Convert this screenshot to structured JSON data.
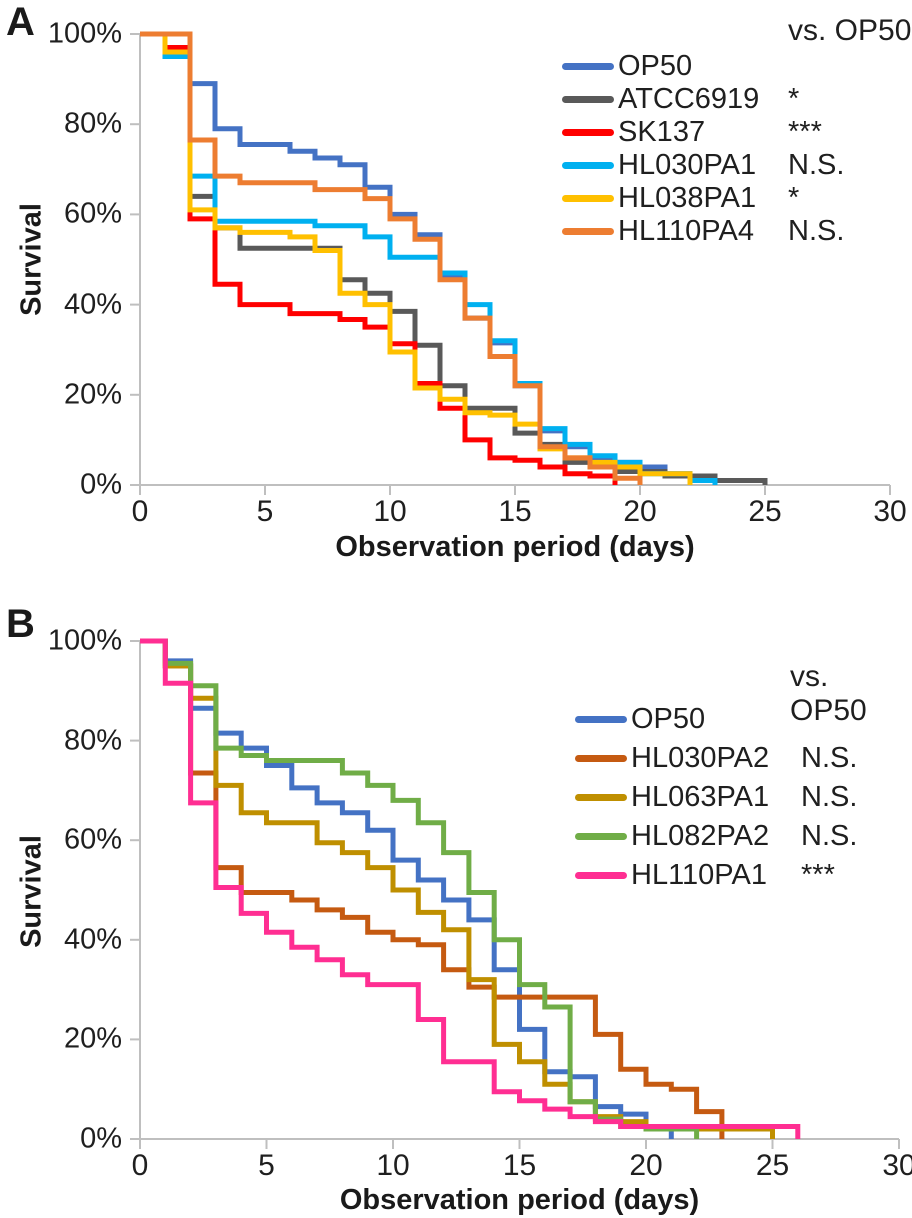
{
  "panel_labels": [
    "A",
    "B"
  ],
  "chart_data": [
    {
      "type": "line",
      "subtype": "kaplan-meier-step",
      "panel": "A",
      "xlabel": "Observation period (days)",
      "ylabel": "Survival",
      "legend_note": "vs. OP50",
      "legend_position": "top-right",
      "grid": false,
      "xlim": [
        0,
        30
      ],
      "ylim_pct": [
        0,
        100
      ],
      "x_ticks": [
        "0",
        "5",
        "10",
        "15",
        "20",
        "25",
        "30"
      ],
      "y_ticks": [
        "100%",
        "80%",
        "60%",
        "40%",
        "20%",
        "0%"
      ],
      "axis_color": "#BFBFBF",
      "series": [
        {
          "name": "OP50",
          "color": "#4472C4",
          "vs_op50": "",
          "points": [
            [
              0,
              100
            ],
            [
              2,
              89
            ],
            [
              3,
              79
            ],
            [
              4,
              75.5
            ],
            [
              6,
              74
            ],
            [
              7,
              72.5
            ],
            [
              8,
              71
            ],
            [
              9,
              66
            ],
            [
              10,
              60
            ],
            [
              11,
              55.5
            ],
            [
              12,
              46.5
            ],
            [
              13,
              37
            ],
            [
              14,
              31.5
            ],
            [
              15,
              22
            ],
            [
              16,
              12
            ],
            [
              17,
              8.5
            ],
            [
              18,
              6
            ],
            [
              19,
              5
            ],
            [
              20,
              4
            ],
            [
              21,
              2.5
            ],
            [
              22,
              1
            ],
            [
              23,
              0
            ]
          ]
        },
        {
          "name": "ATCC6919",
          "color": "#595959",
          "vs_op50": "*",
          "points": [
            [
              0,
              100
            ],
            [
              1,
              97
            ],
            [
              2,
              64
            ],
            [
              3,
              57
            ],
            [
              4,
              52.5
            ],
            [
              8,
              45.5
            ],
            [
              9,
              42.5
            ],
            [
              10,
              38.5
            ],
            [
              11,
              31
            ],
            [
              12,
              22
            ],
            [
              13,
              17
            ],
            [
              15,
              11.5
            ],
            [
              16,
              9
            ],
            [
              17,
              5
            ],
            [
              19,
              3
            ],
            [
              21,
              2
            ],
            [
              23,
              1
            ],
            [
              25,
              0
            ]
          ]
        },
        {
          "name": "SK137",
          "color": "#FF0000",
          "vs_op50": "***",
          "points": [
            [
              0,
              100
            ],
            [
              1,
              97
            ],
            [
              2,
              59
            ],
            [
              3,
              44.5
            ],
            [
              4,
              40
            ],
            [
              6,
              38
            ],
            [
              8,
              36.7
            ],
            [
              9,
              35
            ],
            [
              10,
              31.3
            ],
            [
              11,
              22.5
            ],
            [
              12,
              17
            ],
            [
              13,
              10
            ],
            [
              14,
              6
            ],
            [
              15,
              5.5
            ],
            [
              16,
              4
            ],
            [
              17,
              2.5
            ],
            [
              18,
              2
            ],
            [
              19,
              0
            ]
          ]
        },
        {
          "name": "HL030PA1",
          "color": "#00B0F0",
          "vs_op50": "N.S.",
          "points": [
            [
              0,
              100
            ],
            [
              1,
              95
            ],
            [
              2,
              68.5
            ],
            [
              3,
              58.5
            ],
            [
              7,
              57.5
            ],
            [
              9,
              55
            ],
            [
              10,
              50.5
            ],
            [
              12,
              47
            ],
            [
              13,
              40
            ],
            [
              14,
              32
            ],
            [
              15,
              22.5
            ],
            [
              16,
              12.5
            ],
            [
              17,
              9
            ],
            [
              18,
              6.5
            ],
            [
              19,
              5
            ],
            [
              20,
              2.5
            ],
            [
              22,
              1
            ],
            [
              23,
              0
            ]
          ]
        },
        {
          "name": "HL038PA1",
          "color": "#FFC000",
          "vs_op50": "*",
          "points": [
            [
              0,
              100
            ],
            [
              1,
              96
            ],
            [
              2,
              61
            ],
            [
              3,
              57
            ],
            [
              4,
              56
            ],
            [
              6,
              55
            ],
            [
              7,
              52
            ],
            [
              8,
              42.5
            ],
            [
              9,
              40
            ],
            [
              10,
              29.5
            ],
            [
              11,
              21.5
            ],
            [
              12,
              19
            ],
            [
              13,
              16
            ],
            [
              14,
              15.5
            ],
            [
              15,
              13.5
            ],
            [
              16,
              8
            ],
            [
              17,
              6
            ],
            [
              18,
              5
            ],
            [
              19,
              4
            ],
            [
              20,
              2.5
            ],
            [
              22,
              0
            ]
          ]
        },
        {
          "name": "HL110PA4",
          "color": "#ED7D31",
          "vs_op50": "N.S.",
          "points": [
            [
              0,
              100
            ],
            [
              2,
              76.5
            ],
            [
              3,
              68.5
            ],
            [
              4,
              67
            ],
            [
              7,
              65.5
            ],
            [
              9,
              63.5
            ],
            [
              10,
              59
            ],
            [
              11,
              54.5
            ],
            [
              12,
              45.5
            ],
            [
              13,
              37
            ],
            [
              14,
              28.5
            ],
            [
              15,
              22
            ],
            [
              16,
              8.5
            ],
            [
              17,
              6
            ],
            [
              18,
              4
            ],
            [
              19,
              1.5
            ],
            [
              20,
              0
            ]
          ]
        }
      ]
    },
    {
      "type": "line",
      "subtype": "kaplan-meier-step",
      "panel": "B",
      "xlabel": "Observation period (days)",
      "ylabel": "Survival",
      "legend_note": "vs. OP50",
      "legend_position": "top-right",
      "grid": false,
      "xlim": [
        0,
        30
      ],
      "ylim_pct": [
        0,
        100
      ],
      "x_ticks": [
        "0",
        "5",
        "10",
        "15",
        "20",
        "25",
        "30"
      ],
      "y_ticks": [
        "100%",
        "80%",
        "60%",
        "40%",
        "20%",
        "0%"
      ],
      "axis_color": "#BFBFBF",
      "series": [
        {
          "name": "OP50",
          "color": "#4472C4",
          "vs_op50": "",
          "points": [
            [
              0,
              100
            ],
            [
              1,
              96
            ],
            [
              2,
              86.5
            ],
            [
              3,
              81.5
            ],
            [
              4,
              78.5
            ],
            [
              5,
              75
            ],
            [
              6,
              70.5
            ],
            [
              7,
              67.5
            ],
            [
              8,
              65.5
            ],
            [
              9,
              62
            ],
            [
              10,
              56
            ],
            [
              11,
              52
            ],
            [
              12,
              48
            ],
            [
              13,
              44
            ],
            [
              14,
              34
            ],
            [
              15,
              22
            ],
            [
              16,
              13.5
            ],
            [
              17,
              12.5
            ],
            [
              18,
              6.5
            ],
            [
              19,
              5
            ],
            [
              20,
              2.5
            ],
            [
              21,
              0
            ]
          ]
        },
        {
          "name": "HL030PA2",
          "color": "#C55A11",
          "vs_op50": "N.S.",
          "points": [
            [
              0,
              100
            ],
            [
              1,
              95
            ],
            [
              2,
              73.5
            ],
            [
              3,
              54.5
            ],
            [
              4,
              49.5
            ],
            [
              6,
              48
            ],
            [
              7,
              46
            ],
            [
              8,
              44.5
            ],
            [
              9,
              41.5
            ],
            [
              10,
              40
            ],
            [
              11,
              39
            ],
            [
              12,
              34
            ],
            [
              13,
              30.5
            ],
            [
              14,
              28.5
            ],
            [
              18,
              21
            ],
            [
              19,
              14
            ],
            [
              20,
              11
            ],
            [
              21,
              10
            ],
            [
              22,
              5.5
            ],
            [
              23,
              0
            ]
          ]
        },
        {
          "name": "HL063PA1",
          "color": "#BF8F00",
          "vs_op50": "N.S.",
          "points": [
            [
              0,
              100
            ],
            [
              1,
              95
            ],
            [
              2,
              88.5
            ],
            [
              3,
              71
            ],
            [
              4,
              65.5
            ],
            [
              5,
              63.5
            ],
            [
              7,
              59.5
            ],
            [
              8,
              57.5
            ],
            [
              9,
              54.5
            ],
            [
              10,
              50
            ],
            [
              11,
              45.5
            ],
            [
              12,
              42
            ],
            [
              13,
              32
            ],
            [
              14,
              19
            ],
            [
              15,
              15.5
            ],
            [
              16,
              11
            ],
            [
              17,
              7.5
            ],
            [
              18,
              4.5
            ],
            [
              19,
              3.5
            ],
            [
              20,
              2
            ],
            [
              25,
              0
            ]
          ]
        },
        {
          "name": "HL082PA2",
          "color": "#70AD47",
          "vs_op50": "N.S.",
          "points": [
            [
              0,
              100
            ],
            [
              1,
              95.5
            ],
            [
              2,
              91
            ],
            [
              3,
              78.5
            ],
            [
              4,
              77
            ],
            [
              5,
              76
            ],
            [
              8,
              73.5
            ],
            [
              9,
              71
            ],
            [
              10,
              68
            ],
            [
              11,
              63.5
            ],
            [
              12,
              57.5
            ],
            [
              13,
              49.5
            ],
            [
              14,
              40
            ],
            [
              15,
              31
            ],
            [
              16,
              26.5
            ],
            [
              17,
              7.5
            ],
            [
              18,
              4
            ],
            [
              19,
              2.5
            ],
            [
              20,
              2
            ],
            [
              22,
              0
            ]
          ]
        },
        {
          "name": "HL110PA1",
          "color": "#FF2E92",
          "vs_op50": "***",
          "points": [
            [
              0,
              100
            ],
            [
              1,
              91.5
            ],
            [
              2,
              67.5
            ],
            [
              3,
              50.5
            ],
            [
              4,
              45.3
            ],
            [
              5,
              41.5
            ],
            [
              6,
              38.5
            ],
            [
              7,
              36
            ],
            [
              8,
              33
            ],
            [
              9,
              31
            ],
            [
              11,
              24
            ],
            [
              12,
              15.5
            ],
            [
              14,
              9.5
            ],
            [
              15,
              7.7
            ],
            [
              16,
              6
            ],
            [
              17,
              4.5
            ],
            [
              18,
              3.5
            ],
            [
              19,
              2.5
            ],
            [
              26,
              0
            ]
          ]
        }
      ]
    }
  ]
}
